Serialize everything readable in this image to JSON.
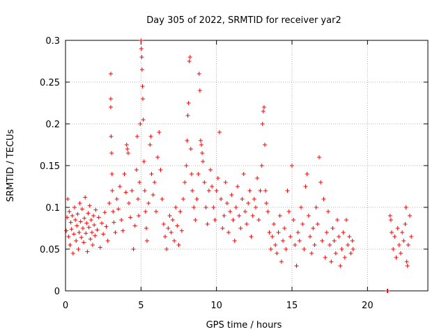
{
  "chart_data": {
    "type": "scatter",
    "title": "Day 305 of 2022, SRMTID for receiver yar2",
    "xlabel": "GPS time / hours",
    "ylabel": "SRMTID / TECUs",
    "xlim": [
      0,
      24
    ],
    "ylim": [
      0,
      0.3
    ],
    "xticks": [
      0,
      5,
      10,
      15,
      20
    ],
    "xtick_labels": [
      "0",
      "5",
      "10",
      "15",
      "20"
    ],
    "yticks": [
      0,
      0.05,
      0.1,
      0.15,
      0.2,
      0.25,
      0.3
    ],
    "ytick_labels": [
      "0",
      "0.05",
      "0.1",
      "0.15",
      "0.2",
      "0.25",
      "0.3"
    ],
    "grid": true,
    "marker": "+",
    "color": "#ff0000",
    "series": [
      {
        "name": "SRMTID",
        "points": [
          [
            0.05,
            0.072
          ],
          [
            0.1,
            0.088
          ],
          [
            0.15,
            0.11
          ],
          [
            0.2,
            0.065
          ],
          [
            0.25,
            0.095
          ],
          [
            0.3,
            0.055
          ],
          [
            0.35,
            0.082
          ],
          [
            0.4,
            0.074
          ],
          [
            0.45,
            0.09
          ],
          [
            0.5,
            0.045
          ],
          [
            0.55,
            0.068
          ],
          [
            0.6,
            0.1
          ],
          [
            0.65,
            0.085
          ],
          [
            0.7,
            0.06
          ],
          [
            0.75,
            0.078
          ],
          [
            0.8,
            0.092
          ],
          [
            0.85,
            0.05
          ],
          [
            0.9,
            0.07
          ],
          [
            0.95,
            0.105
          ],
          [
            1.0,
            0.083
          ],
          [
            1.05,
            0.064
          ],
          [
            1.1,
            0.098
          ],
          [
            1.15,
            0.075
          ],
          [
            1.2,
            0.058
          ],
          [
            1.25,
            0.087
          ],
          [
            1.3,
            0.112
          ],
          [
            1.35,
            0.069
          ],
          [
            1.4,
            0.081
          ],
          [
            1.45,
            0.047
          ],
          [
            1.5,
            0.093
          ],
          [
            1.55,
            0.076
          ],
          [
            1.6,
            0.102
          ],
          [
            1.65,
            0.062
          ],
          [
            1.7,
            0.085
          ],
          [
            1.75,
            0.07
          ],
          [
            1.8,
            0.055
          ],
          [
            1.85,
            0.09
          ],
          [
            1.9,
            0.079
          ],
          [
            1.95,
            0.066
          ],
          [
            2.0,
            0.097
          ],
          [
            2.1,
            0.073
          ],
          [
            2.2,
            0.088
          ],
          [
            2.3,
            0.052
          ],
          [
            2.4,
            0.081
          ],
          [
            2.5,
            0.068
          ],
          [
            2.6,
            0.094
          ],
          [
            2.7,
            0.077
          ],
          [
            2.8,
            0.06
          ],
          [
            2.9,
            0.105
          ],
          [
            3.0,
            0.26
          ],
          [
            3.0,
            0.23
          ],
          [
            3.0,
            0.22
          ],
          [
            3.02,
            0.185
          ],
          [
            3.05,
            0.165
          ],
          [
            3.08,
            0.14
          ],
          [
            3.1,
            0.12
          ],
          [
            3.15,
            0.095
          ],
          [
            3.2,
            0.082
          ],
          [
            3.3,
            0.07
          ],
          [
            3.4,
            0.11
          ],
          [
            3.5,
            0.098
          ],
          [
            3.6,
            0.125
          ],
          [
            3.7,
            0.085
          ],
          [
            3.8,
            0.072
          ],
          [
            3.9,
            0.14
          ],
          [
            4.0,
            0.118
          ],
          [
            4.05,
            0.175
          ],
          [
            4.1,
            0.17
          ],
          [
            4.15,
            0.165
          ],
          [
            4.2,
            0.105
          ],
          [
            4.3,
            0.088
          ],
          [
            4.4,
            0.12
          ],
          [
            4.5,
            0.05
          ],
          [
            4.6,
            0.078
          ],
          [
            4.7,
            0.145
          ],
          [
            4.75,
            0.185
          ],
          [
            4.8,
            0.11
          ],
          [
            4.85,
            0.09
          ],
          [
            4.9,
            0.13
          ],
          [
            4.95,
            0.2
          ],
          [
            5.0,
            0.3
          ],
          [
            5.02,
            0.29
          ],
          [
            5.05,
            0.28
          ],
          [
            5.07,
            0.265
          ],
          [
            5.1,
            0.245
          ],
          [
            5.12,
            0.23
          ],
          [
            5.15,
            0.205
          ],
          [
            5.2,
            0.155
          ],
          [
            5.25,
            0.12
          ],
          [
            5.3,
            0.095
          ],
          [
            5.35,
            0.075
          ],
          [
            5.4,
            0.06
          ],
          [
            5.5,
            0.105
          ],
          [
            5.6,
            0.175
          ],
          [
            5.65,
            0.185
          ],
          [
            5.7,
            0.14
          ],
          [
            5.8,
            0.115
          ],
          [
            5.9,
            0.13
          ],
          [
            6.0,
            0.095
          ],
          [
            6.1,
            0.16
          ],
          [
            6.2,
            0.19
          ],
          [
            6.3,
            0.145
          ],
          [
            6.4,
            0.11
          ],
          [
            6.5,
            0.08
          ],
          [
            6.6,
            0.065
          ],
          [
            6.7,
            0.05
          ],
          [
            6.8,
            0.075
          ],
          [
            6.9,
            0.09
          ],
          [
            7.0,
            0.07
          ],
          [
            7.1,
            0.085
          ],
          [
            7.2,
            0.06
          ],
          [
            7.3,
            0.1
          ],
          [
            7.4,
            0.078
          ],
          [
            7.5,
            0.055
          ],
          [
            7.6,
            0.095
          ],
          [
            7.7,
            0.072
          ],
          [
            7.8,
            0.11
          ],
          [
            7.9,
            0.13
          ],
          [
            8.0,
            0.15
          ],
          [
            8.05,
            0.18
          ],
          [
            8.1,
            0.21
          ],
          [
            8.15,
            0.225
          ],
          [
            8.2,
            0.275
          ],
          [
            8.25,
            0.28
          ],
          [
            8.3,
            0.17
          ],
          [
            8.35,
            0.14
          ],
          [
            8.4,
            0.12
          ],
          [
            8.5,
            0.1
          ],
          [
            8.6,
            0.085
          ],
          [
            8.7,
            0.11
          ],
          [
            8.8,
            0.14
          ],
          [
            8.85,
            0.26
          ],
          [
            8.9,
            0.24
          ],
          [
            8.95,
            0.18
          ],
          [
            9.0,
            0.175
          ],
          [
            9.05,
            0.165
          ],
          [
            9.1,
            0.155
          ],
          [
            9.2,
            0.13
          ],
          [
            9.3,
            0.1
          ],
          [
            9.4,
            0.08
          ],
          [
            9.5,
            0.12
          ],
          [
            9.6,
            0.145
          ],
          [
            9.7,
            0.125
          ],
          [
            9.8,
            0.1
          ],
          [
            9.9,
            0.085
          ],
          [
            10.0,
            0.12
          ],
          [
            10.1,
            0.135
          ],
          [
            10.2,
            0.19
          ],
          [
            10.3,
            0.11
          ],
          [
            10.4,
            0.075
          ],
          [
            10.5,
            0.09
          ],
          [
            10.6,
            0.13
          ],
          [
            10.7,
            0.105
          ],
          [
            10.8,
            0.07
          ],
          [
            10.9,
            0.095
          ],
          [
            11.0,
            0.115
          ],
          [
            11.1,
            0.085
          ],
          [
            11.2,
            0.06
          ],
          [
            11.3,
            0.1
          ],
          [
            11.4,
            0.125
          ],
          [
            11.5,
            0.09
          ],
          [
            11.6,
            0.075
          ],
          [
            11.7,
            0.11
          ],
          [
            11.8,
            0.14
          ],
          [
            11.9,
            0.095
          ],
          [
            12.0,
            0.08
          ],
          [
            12.1,
            0.105
          ],
          [
            12.2,
            0.12
          ],
          [
            12.3,
            0.065
          ],
          [
            12.4,
            0.09
          ],
          [
            12.5,
            0.11
          ],
          [
            12.6,
            0.1
          ],
          [
            12.7,
            0.135
          ],
          [
            12.8,
            0.085
          ],
          [
            12.9,
            0.12
          ],
          [
            13.0,
            0.15
          ],
          [
            13.05,
            0.2
          ],
          [
            13.1,
            0.215
          ],
          [
            13.15,
            0.22
          ],
          [
            13.2,
            0.175
          ],
          [
            13.25,
            0.12
          ],
          [
            13.3,
            0.105
          ],
          [
            13.4,
            0.095
          ],
          [
            13.5,
            0.07
          ],
          [
            13.6,
            0.05
          ],
          [
            13.7,
            0.065
          ],
          [
            13.8,
            0.08
          ],
          [
            13.9,
            0.055
          ],
          [
            14.0,
            0.045
          ],
          [
            14.1,
            0.07
          ],
          [
            14.2,
            0.09
          ],
          [
            14.3,
            0.035
          ],
          [
            14.4,
            0.06
          ],
          [
            14.5,
            0.075
          ],
          [
            14.6,
            0.05
          ],
          [
            14.7,
            0.12
          ],
          [
            14.8,
            0.095
          ],
          [
            14.9,
            0.065
          ],
          [
            15.0,
            0.15
          ],
          [
            15.1,
            0.085
          ],
          [
            15.2,
            0.055
          ],
          [
            15.3,
            0.03
          ],
          [
            15.4,
            0.07
          ],
          [
            15.5,
            0.06
          ],
          [
            15.6,
            0.1
          ],
          [
            15.7,
            0.08
          ],
          [
            15.8,
            0.05
          ],
          [
            15.9,
            0.125
          ],
          [
            16.0,
            0.14
          ],
          [
            16.1,
            0.09
          ],
          [
            16.2,
            0.065
          ],
          [
            16.3,
            0.045
          ],
          [
            16.4,
            0.075
          ],
          [
            16.5,
            0.055
          ],
          [
            16.6,
            0.1
          ],
          [
            16.7,
            0.08
          ],
          [
            16.8,
            0.16
          ],
          [
            16.9,
            0.13
          ],
          [
            17.0,
            0.06
          ],
          [
            17.1,
            0.11
          ],
          [
            17.2,
            0.04
          ],
          [
            17.3,
            0.07
          ],
          [
            17.4,
            0.095
          ],
          [
            17.5,
            0.055
          ],
          [
            17.6,
            0.035
          ],
          [
            17.7,
            0.075
          ],
          [
            17.8,
            0.06
          ],
          [
            17.9,
            0.045
          ],
          [
            18.0,
            0.085
          ],
          [
            18.1,
            0.065
          ],
          [
            18.2,
            0.03
          ],
          [
            18.3,
            0.05
          ],
          [
            18.4,
            0.07
          ],
          [
            18.5,
            0.04
          ],
          [
            18.6,
            0.085
          ],
          [
            18.7,
            0.055
          ],
          [
            18.8,
            0.065
          ],
          [
            18.9,
            0.045
          ],
          [
            19.0,
            0.06
          ],
          [
            19.05,
            0.05
          ],
          [
            21.3,
            0.0
          ],
          [
            21.35,
            0.0
          ],
          [
            21.5,
            0.09
          ],
          [
            21.55,
            0.085
          ],
          [
            21.6,
            0.07
          ],
          [
            21.7,
            0.05
          ],
          [
            21.8,
            0.065
          ],
          [
            21.9,
            0.04
          ],
          [
            22.0,
            0.075
          ],
          [
            22.1,
            0.055
          ],
          [
            22.2,
            0.045
          ],
          [
            22.3,
            0.07
          ],
          [
            22.4,
            0.06
          ],
          [
            22.5,
            0.08
          ],
          [
            22.55,
            0.1
          ],
          [
            22.6,
            0.035
          ],
          [
            22.65,
            0.03
          ],
          [
            22.7,
            0.055
          ],
          [
            22.8,
            0.09
          ],
          [
            22.9,
            0.065
          ]
        ]
      }
    ]
  }
}
